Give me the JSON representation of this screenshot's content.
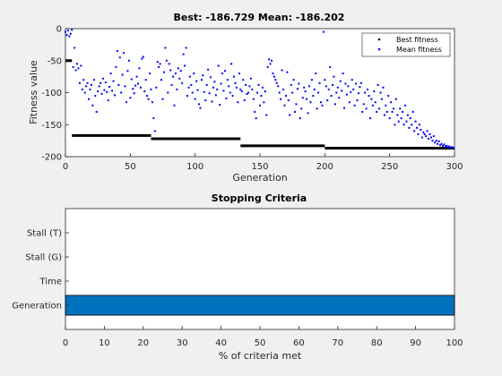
{
  "colors": {
    "figure_bg": "#f0f0f0",
    "axes_bg": "#ffffff",
    "axis": "#262626",
    "best_marker": "#000000",
    "mean_marker": "#0000ff",
    "bar_fill": "#0072bd"
  },
  "chart_data": [
    {
      "type": "scatter",
      "title": "Best: -186.729 Mean: -186.202",
      "xlabel": "Generation",
      "ylabel": "Fitness value",
      "xlim": [
        0,
        300
      ],
      "ylim": [
        -200,
        0
      ],
      "xticks": [
        0,
        50,
        100,
        150,
        200,
        250,
        300
      ],
      "yticks": [
        -200,
        -150,
        -100,
        -50,
        0
      ],
      "grid": false,
      "legend_position": "top-right",
      "best_segments": [
        {
          "x_start": 0,
          "x_end": 5,
          "y": -50
        },
        {
          "x_start": 5,
          "x_end": 66,
          "y": -167
        },
        {
          "x_start": 66,
          "x_end": 135,
          "y": -172
        },
        {
          "x_start": 135,
          "x_end": 200,
          "y": -183
        },
        {
          "x_start": 200,
          "x_end": 300,
          "y": -186.7
        }
      ],
      "series": [
        {
          "name": "Best fitness",
          "marker": "dot",
          "color": "#000000"
        },
        {
          "name": "Mean fitness",
          "marker": "dot",
          "color": "#0000ff"
        }
      ],
      "mean_points": [
        [
          0,
          -5
        ],
        [
          1,
          -10
        ],
        [
          2,
          -3
        ],
        [
          3,
          -12
        ],
        [
          4,
          -8
        ],
        [
          5,
          -2
        ],
        [
          6,
          -60
        ],
        [
          7,
          -30
        ],
        [
          8,
          -65
        ],
        [
          9,
          -55
        ],
        [
          10,
          -62
        ],
        [
          11,
          -85
        ],
        [
          12,
          -58
        ],
        [
          13,
          -95
        ],
        [
          14,
          -80
        ],
        [
          15,
          -100
        ],
        [
          16,
          -90
        ],
        [
          17,
          -85
        ],
        [
          18,
          -110
        ],
        [
          19,
          -95
        ],
        [
          20,
          -88
        ],
        [
          21,
          -120
        ],
        [
          22,
          -80
        ],
        [
          23,
          -105
        ],
        [
          24,
          -130
        ],
        [
          25,
          -98
        ],
        [
          26,
          -90
        ],
        [
          27,
          -85
        ],
        [
          28,
          -102
        ],
        [
          29,
          -78
        ],
        [
          30,
          -96
        ],
        [
          31,
          -84
        ],
        [
          32,
          -99
        ],
        [
          33,
          -112
        ],
        [
          34,
          -91
        ],
        [
          35,
          -70
        ],
        [
          36,
          -97
        ],
        [
          37,
          -82
        ],
        [
          38,
          -104
        ],
        [
          39,
          -60
        ],
        [
          40,
          -35
        ],
        [
          41,
          -88
        ],
        [
          42,
          -45
        ],
        [
          43,
          -100
        ],
        [
          44,
          -72
        ],
        [
          45,
          -38
        ],
        [
          46,
          -90
        ],
        [
          47,
          -115
        ],
        [
          48,
          -66
        ],
        [
          49,
          -50
        ],
        [
          50,
          -108
        ],
        [
          51,
          -79
        ],
        [
          52,
          -94
        ],
        [
          53,
          -101
        ],
        [
          54,
          -89
        ],
        [
          55,
          -75
        ],
        [
          56,
          -86
        ],
        [
          57,
          -62
        ],
        [
          58,
          -92
        ],
        [
          59,
          -47
        ],
        [
          60,
          -44
        ],
        [
          61,
          -98
        ],
        [
          62,
          -80
        ],
        [
          63,
          -105
        ],
        [
          64,
          -110
        ],
        [
          65,
          -70
        ],
        [
          66,
          -95
        ],
        [
          67,
          -115
        ],
        [
          68,
          -140
        ],
        [
          69,
          -160
        ],
        [
          70,
          -92
        ],
        [
          71,
          -52
        ],
        [
          72,
          -60
        ],
        [
          73,
          -55
        ],
        [
          74,
          -80
        ],
        [
          75,
          -110
        ],
        [
          76,
          -68
        ],
        [
          77,
          -30
        ],
        [
          78,
          -50
        ],
        [
          79,
          -100
        ],
        [
          80,
          -55
        ],
        [
          81,
          -65
        ],
        [
          82,
          -88
        ],
        [
          83,
          -75
        ],
        [
          84,
          -120
        ],
        [
          85,
          -70
        ],
        [
          86,
          -95
        ],
        [
          87,
          -62
        ],
        [
          88,
          -78
        ],
        [
          89,
          -66
        ],
        [
          90,
          -85
        ],
        [
          91,
          -40
        ],
        [
          92,
          -58
        ],
        [
          93,
          -30
        ],
        [
          94,
          -105
        ],
        [
          95,
          -92
        ],
        [
          96,
          -75
        ],
        [
          97,
          -88
        ],
        [
          98,
          -100
        ],
        [
          99,
          -70
        ],
        [
          100,
          -110
        ],
        [
          101,
          -82
        ],
        [
          102,
          -96
        ],
        [
          103,
          -118
        ],
        [
          104,
          -124
        ],
        [
          105,
          -80
        ],
        [
          106,
          -73
        ],
        [
          107,
          -99
        ],
        [
          108,
          -112
        ],
        [
          109,
          -88
        ],
        [
          110,
          -64
        ],
        [
          111,
          -101
        ],
        [
          112,
          -76
        ],
        [
          113,
          -114
        ],
        [
          114,
          -92
        ],
        [
          115,
          -83
        ],
        [
          116,
          -104
        ],
        [
          117,
          -95
        ],
        [
          118,
          -58
        ],
        [
          119,
          -119
        ],
        [
          120,
          -86
        ],
        [
          121,
          -70
        ],
        [
          122,
          -97
        ],
        [
          123,
          -66
        ],
        [
          124,
          -109
        ],
        [
          125,
          -80
        ],
        [
          126,
          -90
        ],
        [
          127,
          -100
        ],
        [
          128,
          -55
        ],
        [
          129,
          -105
        ],
        [
          130,
          -75
        ],
        [
          131,
          -85
        ],
        [
          132,
          -92
        ],
        [
          133,
          -115
        ],
        [
          134,
          -70
        ],
        [
          135,
          -95
        ],
        [
          136,
          -98
        ],
        [
          137,
          -80
        ],
        [
          138,
          -112
        ],
        [
          139,
          -88
        ],
        [
          140,
          -102
        ],
        [
          141,
          -100
        ],
        [
          142,
          -90
        ],
        [
          143,
          -78
        ],
        [
          144,
          -95
        ],
        [
          145,
          -110
        ],
        [
          146,
          -130
        ],
        [
          147,
          -140
        ],
        [
          148,
          -100
        ],
        [
          149,
          -88
        ],
        [
          150,
          -120
        ],
        [
          151,
          -105
        ],
        [
          152,
          -92
        ],
        [
          153,
          -115
        ],
        [
          154,
          -98
        ],
        [
          155,
          -135
        ],
        [
          156,
          -60
        ],
        [
          157,
          -48
        ],
        [
          158,
          -55
        ],
        [
          159,
          -50
        ],
        [
          160,
          -70
        ],
        [
          161,
          -75
        ],
        [
          162,
          -80
        ],
        [
          163,
          -85
        ],
        [
          164,
          -90
        ],
        [
          165,
          -100
        ],
        [
          166,
          -110
        ],
        [
          167,
          -65
        ],
        [
          168,
          -95
        ],
        [
          169,
          -120
        ],
        [
          170,
          -105
        ],
        [
          171,
          -68
        ],
        [
          172,
          -112
        ],
        [
          173,
          -135
        ],
        [
          174,
          -88
        ],
        [
          175,
          -100
        ],
        [
          176,
          -80
        ],
        [
          177,
          -130
        ],
        [
          178,
          -118
        ],
        [
          179,
          -94
        ],
        [
          180,
          -86
        ],
        [
          181,
          -140
        ],
        [
          182,
          -125
        ],
        [
          183,
          -108
        ],
        [
          184,
          -92
        ],
        [
          185,
          -98
        ],
        [
          186,
          -110
        ],
        [
          187,
          -132
        ],
        [
          188,
          -90
        ],
        [
          189,
          -115
        ],
        [
          190,
          -80
        ],
        [
          191,
          -105
        ],
        [
          192,
          -95
        ],
        [
          193,
          -70
        ],
        [
          194,
          -125
        ],
        [
          195,
          -100
        ],
        [
          196,
          -85
        ],
        [
          197,
          -115
        ],
        [
          198,
          -120
        ],
        [
          199,
          -5
        ],
        [
          200,
          -80
        ],
        [
          201,
          -90
        ],
        [
          202,
          -112
        ],
        [
          203,
          -95
        ],
        [
          204,
          -60
        ],
        [
          205,
          -105
        ],
        [
          206,
          -88
        ],
        [
          207,
          -75
        ],
        [
          208,
          -118
        ],
        [
          209,
          -100
        ],
        [
          210,
          -92
        ],
        [
          211,
          -108
        ],
        [
          212,
          -82
        ],
        [
          213,
          -97
        ],
        [
          214,
          -70
        ],
        [
          215,
          -124
        ],
        [
          216,
          -86
        ],
        [
          217,
          -103
        ],
        [
          218,
          -90
        ],
        [
          219,
          -115
        ],
        [
          220,
          -99
        ],
        [
          221,
          -80
        ],
        [
          222,
          -95
        ],
        [
          223,
          -120
        ],
        [
          224,
          -86
        ],
        [
          225,
          -112
        ],
        [
          226,
          -101
        ],
        [
          227,
          -91
        ],
        [
          228,
          -85
        ],
        [
          229,
          -130
        ],
        [
          230,
          -118
        ],
        [
          231,
          -100
        ],
        [
          232,
          -125
        ],
        [
          233,
          -95
        ],
        [
          234,
          -105
        ],
        [
          235,
          -140
        ],
        [
          236,
          -110
        ],
        [
          237,
          -120
        ],
        [
          238,
          -98
        ],
        [
          239,
          -115
        ],
        [
          240,
          -130
        ],
        [
          241,
          -88
        ],
        [
          242,
          -125
        ],
        [
          243,
          -100
        ],
        [
          244,
          -110
        ],
        [
          245,
          -92
        ],
        [
          246,
          -135
        ],
        [
          247,
          -120
        ],
        [
          248,
          -130
        ],
        [
          249,
          -105
        ],
        [
          250,
          -140
        ],
        [
          251,
          -115
        ],
        [
          252,
          -130
        ],
        [
          253,
          -125
        ],
        [
          254,
          -150
        ],
        [
          255,
          -110
        ],
        [
          256,
          -135
        ],
        [
          257,
          -145
        ],
        [
          258,
          -125
        ],
        [
          259,
          -140
        ],
        [
          260,
          -130
        ],
        [
          261,
          -150
        ],
        [
          262,
          -120
        ],
        [
          263,
          -145
        ],
        [
          264,
          -135
        ],
        [
          265,
          -155
        ],
        [
          266,
          -140
        ],
        [
          267,
          -150
        ],
        [
          268,
          -130
        ],
        [
          269,
          -160
        ],
        [
          270,
          -145
        ],
        [
          271,
          -155
        ],
        [
          272,
          -165
        ],
        [
          273,
          -150
        ],
        [
          274,
          -158
        ],
        [
          275,
          -170
        ],
        [
          276,
          -162
        ],
        [
          277,
          -165
        ],
        [
          278,
          -168
        ],
        [
          279,
          -160
        ],
        [
          280,
          -172
        ],
        [
          281,
          -165
        ],
        [
          282,
          -170
        ],
        [
          283,
          -175
        ],
        [
          284,
          -168
        ],
        [
          285,
          -178
        ],
        [
          286,
          -175
        ],
        [
          287,
          -180
        ],
        [
          288,
          -176
        ],
        [
          289,
          -182
        ],
        [
          290,
          -180
        ],
        [
          291,
          -183
        ],
        [
          292,
          -181
        ],
        [
          293,
          -184
        ],
        [
          294,
          -183
        ],
        [
          295,
          -185
        ],
        [
          296,
          -184
        ],
        [
          297,
          -186
        ],
        [
          298,
          -185
        ],
        [
          299,
          -186.2
        ]
      ]
    },
    {
      "type": "bar",
      "orientation": "horizontal",
      "title": "Stopping Criteria",
      "xlabel": "% of criteria met",
      "ylabel": "",
      "categories": [
        "Generation",
        "Time",
        "Stall (G)",
        "Stall (T)"
      ],
      "values": [
        100,
        0,
        0,
        0
      ],
      "xlim": [
        0,
        100
      ],
      "xticks": [
        0,
        10,
        20,
        30,
        40,
        50,
        60,
        70,
        80,
        90,
        100
      ],
      "grid": false
    }
  ]
}
